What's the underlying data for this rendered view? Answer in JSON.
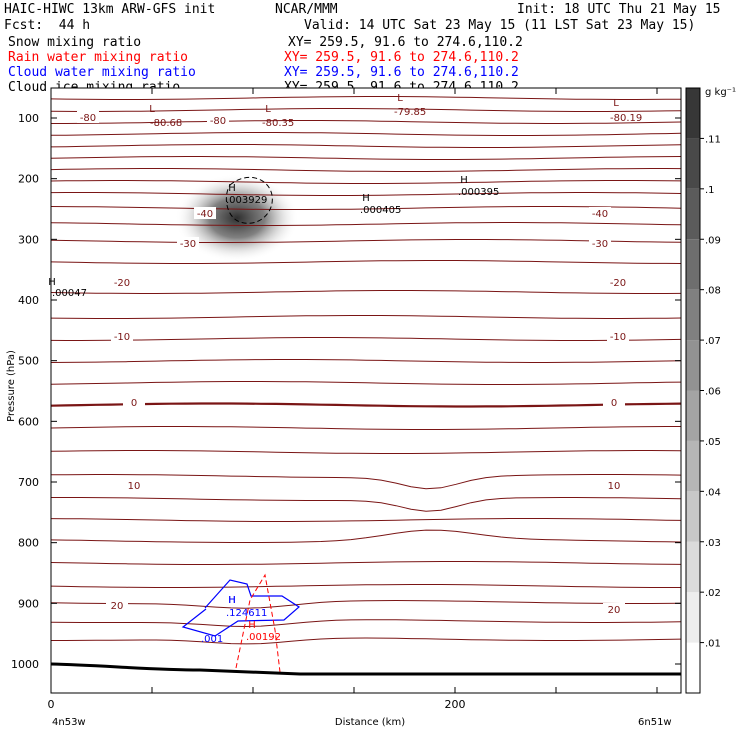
{
  "header": {
    "model": "HAIC-HIWC 13km ARW-GFS init",
    "org": "NCAR/MMM",
    "init": "Init: 18 UTC Thu 21 May 15",
    "fcst": "Fcst:  44 h",
    "valid": "Valid: 14 UTC Sat 23 May 15 (11 LST Sat 23 May 15)",
    "fields": [
      {
        "name": "Snow mixing ratio",
        "xy": "XY= 259.5, 91.6 to 274.6,110.2",
        "color": "#000000"
      },
      {
        "name": "Rain water mixing ratio",
        "xy": "XY= 259.5, 91.6 to 274.6,110.2",
        "color": "#ff0000"
      },
      {
        "name": "Cloud water mixing ratio",
        "xy": "XY= 259.5, 91.6 to 274.6,110.2",
        "color": "#0000ff"
      },
      {
        "name": "Cloud ice mixing ratio",
        "xy": "XY= 259.5, 91.6 to 274.6,110.2",
        "color": "#000000"
      }
    ]
  },
  "chart_data": {
    "type": "cross-section contour",
    "xlabel": "Distance (km)",
    "ylabel": "Pressure (hPa)",
    "x_ticks": [
      0,
      200
    ],
    "y_ticks": [
      100,
      200,
      300,
      400,
      500,
      600,
      700,
      800,
      900,
      1000
    ],
    "ylim": [
      50,
      1050
    ],
    "xlim": [
      0,
      312
    ],
    "x_end_labels": {
      "left": "4n53w",
      "right": "6n51w"
    },
    "colorbar": {
      "unit": "g kg⁻¹",
      "ticks": [
        ".01",
        ".02",
        ".03",
        ".04",
        ".05",
        ".06",
        ".07",
        ".08",
        ".09",
        ".1",
        ".11"
      ],
      "levels": 12
    },
    "temperature_labels": [
      "-80",
      "-40",
      "-30",
      "-20",
      "-10",
      "0",
      "10",
      "20"
    ],
    "extrema": [
      {
        "type": "L",
        "value": "-80.68",
        "x": 50,
        "p": 115
      },
      {
        "type": "L",
        "value": "-80.35",
        "x": 120,
        "p": 112
      },
      {
        "type": "L",
        "value": "-79.85",
        "x": 175,
        "p": 102
      },
      {
        "type": "L",
        "value": "-80.19",
        "x": 282,
        "p": 107
      },
      {
        "type": "H",
        "value": ".003929",
        "x": 88,
        "p": 235
      },
      {
        "type": "H",
        "value": ".000405",
        "x": 155,
        "p": 240
      },
      {
        "type": "H",
        "value": ".000395",
        "x": 202,
        "p": 210
      },
      {
        "type": "H",
        "value": ".00047",
        "x": 2,
        "p": 383
      },
      {
        "type": "H",
        "value": ".124611",
        "x": 84,
        "p": 930
      },
      {
        "type": "H",
        "value": ".001",
        "x": 84,
        "p": 970
      },
      {
        "type": "H",
        "value": ".00192",
        "x": 97,
        "p": 970
      }
    ],
    "labels": {
      "ext_24": "H",
      "ext_25": "L",
      "ext_26": "L",
      "ext_27": "L"
    }
  },
  "colors": {
    "isotherm": "#7a1515",
    "zero_isotherm": "#7a1515",
    "terrain": "#000000",
    "rain": "#ff0000",
    "cloud_water": "#0000ff",
    "snow": "#000000"
  }
}
